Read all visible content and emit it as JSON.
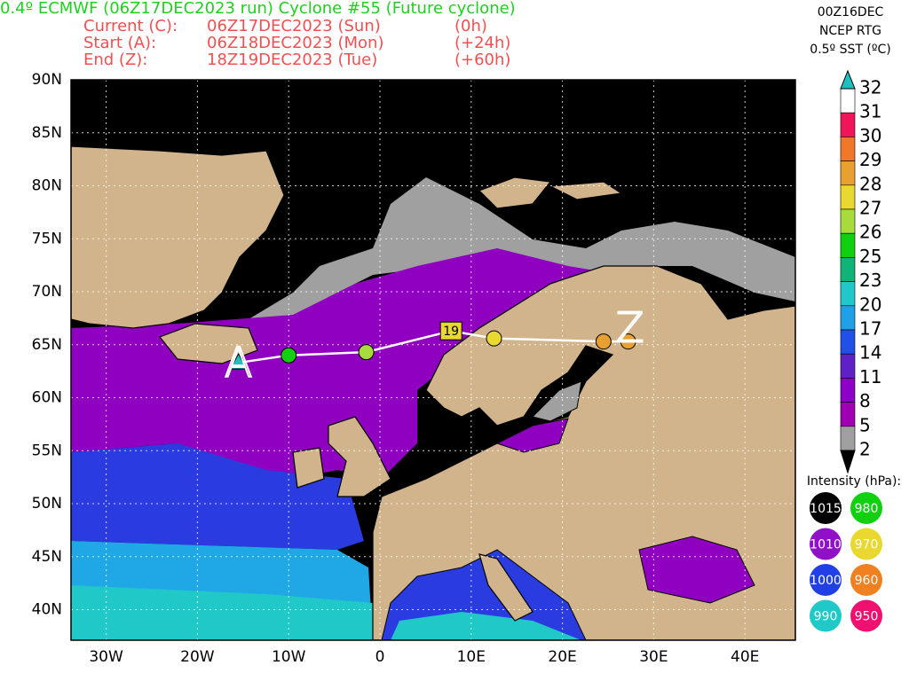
{
  "header": {
    "title": "0.4º ECMWF (06Z17DEC2023 run) Cyclone #55 (Future cyclone)",
    "lines": [
      {
        "label": "Current (C):",
        "time": "06Z17DEC2023 (Sun)",
        "offset": "(0h)"
      },
      {
        "label": "Start (A):",
        "time": "06Z18DEC2023 (Mon)",
        "offset": "(+24h)"
      },
      {
        "label": "End (Z):",
        "time": "18Z19DEC2023 (Tue)",
        "offset": "(+60h)"
      }
    ],
    "sst_info": [
      "00Z16DEC",
      "NCEP RTG",
      "0.5º SST (ºC)"
    ]
  },
  "map": {
    "lat_ticks": [
      {
        "value": 90,
        "label": "90N"
      },
      {
        "value": 85,
        "label": "85N"
      },
      {
        "value": 80,
        "label": "80N"
      },
      {
        "value": 75,
        "label": "75N"
      },
      {
        "value": 70,
        "label": "70N"
      },
      {
        "value": 65,
        "label": "65N"
      },
      {
        "value": 60,
        "label": "60N"
      },
      {
        "value": 55,
        "label": "55N"
      },
      {
        "value": 50,
        "label": "50N"
      },
      {
        "value": 45,
        "label": "45N"
      },
      {
        "value": 40,
        "label": "40N"
      }
    ],
    "lon_ticks": [
      {
        "value": -30,
        "label": "30W"
      },
      {
        "value": -20,
        "label": "20W"
      },
      {
        "value": -10,
        "label": "10W"
      },
      {
        "value": 0,
        "label": "0"
      },
      {
        "value": 10,
        "label": "10E"
      },
      {
        "value": 20,
        "label": "20E"
      },
      {
        "value": 30,
        "label": "30E"
      },
      {
        "value": 40,
        "label": "40E"
      }
    ],
    "track": [
      {
        "lon": -15.5,
        "lat": 63.3,
        "color": "#20c0c0",
        "marker": "triangle"
      },
      {
        "lon": -10,
        "lat": 64,
        "color": "#10d010",
        "marker": "circle"
      },
      {
        "lon": -1.5,
        "lat": 64.3,
        "color": "#a8dc3c",
        "marker": "circle"
      },
      {
        "lon": 12.5,
        "lat": 65.6,
        "color": "#e8d830",
        "marker": "circle"
      },
      {
        "lon": 24.5,
        "lat": 65.3,
        "color": "#e8a030",
        "marker": "circle"
      },
      {
        "lon": 27.2,
        "lat": 65.3,
        "color": "#e8a030",
        "marker": "circle"
      }
    ],
    "current": {
      "label": "19",
      "lon": 7.8,
      "lat": 66.3,
      "color": "#e8d830"
    },
    "start_label": "A",
    "end_label": "Z"
  },
  "colorbar": {
    "levels": [
      32,
      31,
      30,
      29,
      28,
      27,
      26,
      25,
      23,
      20,
      17,
      14,
      11,
      8,
      5,
      2
    ],
    "colors": [
      "#ffffff",
      "#f0145a",
      "#f0782a",
      "#e8a030",
      "#e8d830",
      "#a8dc3c",
      "#10d010",
      "#10b478",
      "#20c8c8",
      "#20a0e6",
      "#2050e6",
      "#6020c8",
      "#8c00c8",
      "#a000b4",
      "#a0a0a0"
    ],
    "top_color": "#20c0c0",
    "bottom_color": "#000000"
  },
  "intensity": {
    "title": "Intensity (hPa):",
    "items": [
      {
        "label": "1015",
        "color": "#000000"
      },
      {
        "label": "980",
        "color": "#10d010"
      },
      {
        "label": "1010",
        "color": "#9010c8"
      },
      {
        "label": "970",
        "color": "#e8d830"
      },
      {
        "label": "1000",
        "color": "#2040e6"
      },
      {
        "label": "960",
        "color": "#f08020"
      },
      {
        "label": "990",
        "color": "#20c8c8"
      },
      {
        "label": "950",
        "color": "#f01070"
      }
    ]
  }
}
